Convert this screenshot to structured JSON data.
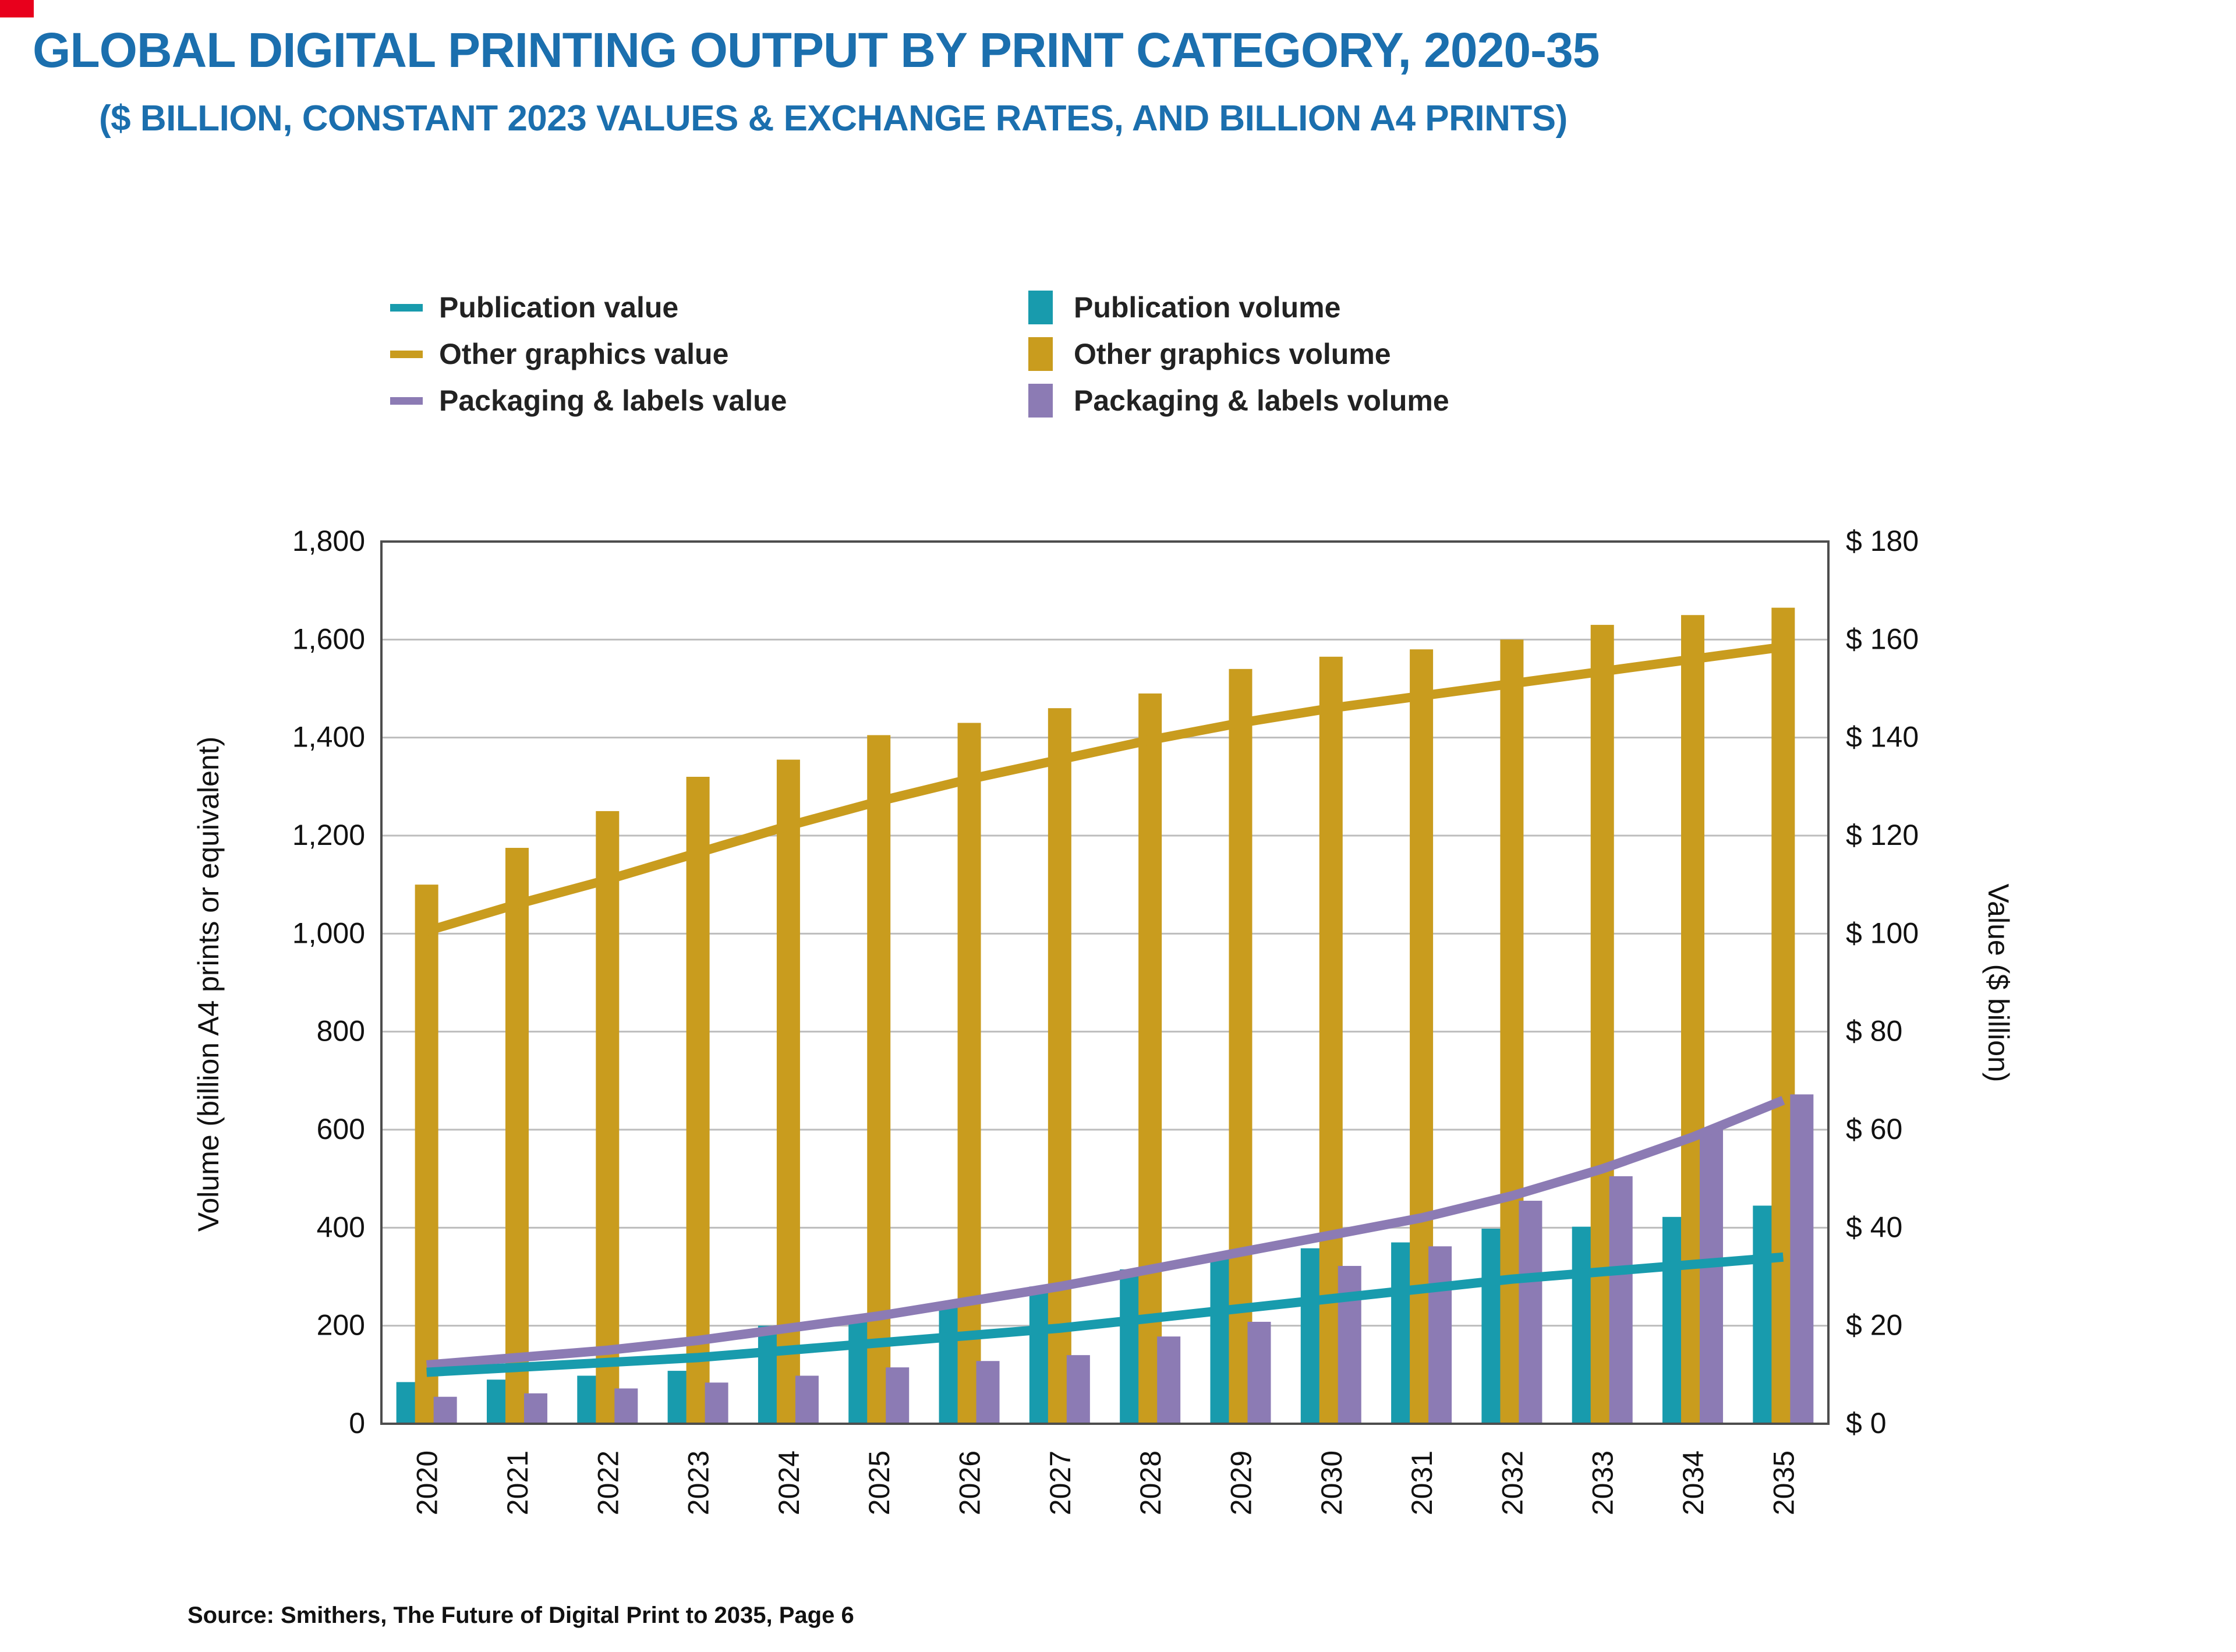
{
  "page": {
    "title": "GLOBAL DIGITAL PRINTING OUTPUT BY PRINT CATEGORY, 2020-35",
    "subtitle": "($ BILLION, CONSTANT 2023 VALUES & EXCHANGE RATES, AND BILLION A4 PRINTS)",
    "source": "Source: Smithers, The Future of Digital Print to 2035, Page 6"
  },
  "colors": {
    "title_blue": "#1b6fae",
    "teal": "#189bad",
    "gold": "#c99c1e",
    "purple": "#8c7bb4",
    "grid": "#bdbdbd",
    "axis": "#4d4d4d",
    "text": "#222222"
  },
  "legend": {
    "col1": [
      {
        "label": "Publication value",
        "color": "#189bad",
        "swatch": "line"
      },
      {
        "label": "Other graphics value",
        "color": "#c99c1e",
        "swatch": "line"
      },
      {
        "label": "Packaging & labels value",
        "color": "#8c7bb4",
        "swatch": "line"
      }
    ],
    "col2": [
      {
        "label": "Publication volume",
        "color": "#189bad",
        "swatch": "box"
      },
      {
        "label": "Other graphics volume",
        "color": "#c99c1e",
        "swatch": "box"
      },
      {
        "label": "Packaging & labels volume",
        "color": "#8c7bb4",
        "swatch": "box"
      }
    ]
  },
  "chart_data": {
    "type": "bar",
    "subtype": "grouped-bars-with-lines",
    "title": "Global digital printing output by print category, 2020-35",
    "x": [
      "2020",
      "2021",
      "2022",
      "2023",
      "2024",
      "2025",
      "2026",
      "2027",
      "2028",
      "2029",
      "2030",
      "2031",
      "2032",
      "2033",
      "2034",
      "2035"
    ],
    "left_axis": {
      "label": "Volume (billion A4 prints or equivalent)",
      "min": 0,
      "max": 1800,
      "step": 200,
      "ticks": [
        "0",
        "200",
        "400",
        "600",
        "800",
        "1,000",
        "1,200",
        "1,400",
        "1,600",
        "1,800"
      ]
    },
    "right_axis": {
      "label": "Value ($ billion)",
      "min": 0,
      "max": 180,
      "step": 20,
      "ticks": [
        "$ 0",
        "$ 20",
        "$ 40",
        "$ 60",
        "$ 80",
        "$ 100",
        "$ 120",
        "$ 140",
        "$ 160",
        "$ 180"
      ]
    },
    "grid": true,
    "legend_position": "top",
    "bar_series": [
      {
        "name": "Publication volume",
        "axis": "left",
        "color": "#189bad",
        "values": [
          85,
          90,
          98,
          108,
          200,
          220,
          245,
          280,
          315,
          345,
          358,
          370,
          398,
          402,
          422,
          445
        ]
      },
      {
        "name": "Other graphics volume",
        "axis": "left",
        "color": "#c99c1e",
        "values": [
          1100,
          1175,
          1250,
          1320,
          1355,
          1405,
          1430,
          1460,
          1490,
          1540,
          1565,
          1580,
          1600,
          1630,
          1650,
          1665
        ]
      },
      {
        "name": "Packaging & labels volume",
        "axis": "left",
        "color": "#8c7bb4",
        "values": [
          55,
          62,
          72,
          84,
          98,
          115,
          128,
          140,
          178,
          208,
          322,
          362,
          455,
          505,
          600,
          672
        ]
      }
    ],
    "line_series": [
      {
        "name": "Other graphics value",
        "axis": "right",
        "color": "#c99c1e",
        "values": [
          100.5,
          106,
          111,
          116.5,
          122,
          127,
          131.5,
          135.5,
          139.5,
          143,
          146,
          148.5,
          151,
          153.5,
          156,
          158.5
        ]
      },
      {
        "name": "Packaging & labels value",
        "axis": "right",
        "color": "#8c7bb4",
        "values": [
          12,
          13.5,
          15,
          17,
          19.5,
          22,
          25,
          28,
          31.5,
          35,
          38.5,
          42,
          46.5,
          52,
          58.5,
          66
        ]
      },
      {
        "name": "Publication value",
        "axis": "right",
        "color": "#189bad",
        "values": [
          10.5,
          11.5,
          12.5,
          13.5,
          15,
          16.5,
          18,
          19.5,
          21.5,
          23.5,
          25.5,
          27.5,
          29.5,
          31,
          32.5,
          34
        ]
      }
    ]
  }
}
